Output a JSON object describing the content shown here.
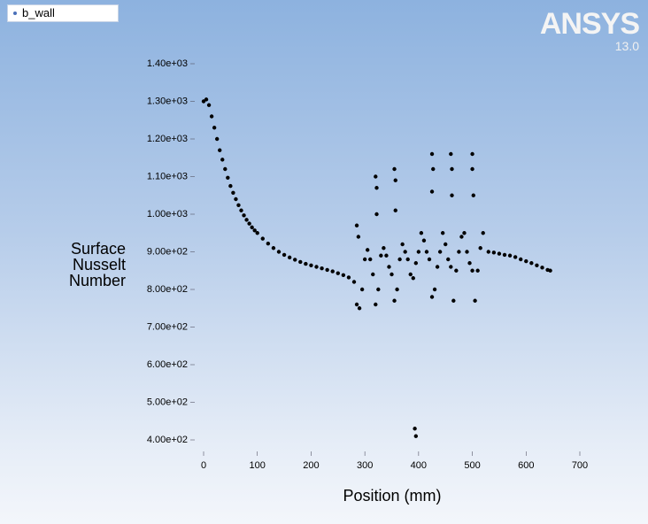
{
  "chart_data": {
    "type": "scatter",
    "logo": "ANSYS",
    "version": "13.0",
    "x_label": "Position (mm)",
    "y_label": "Surface Nusselt Number",
    "xlim": [
      0,
      700
    ],
    "ylim": [
      400,
      1400
    ],
    "xticks": [
      0,
      100,
      200,
      300,
      400,
      500,
      600,
      700
    ],
    "yticks": [
      {
        "value": 400,
        "label": "4.00e+02"
      },
      {
        "value": 500,
        "label": "5.00e+02"
      },
      {
        "value": 600,
        "label": "6.00e+02"
      },
      {
        "value": 700,
        "label": "7.00e+02"
      },
      {
        "value": 800,
        "label": "8.00e+02"
      },
      {
        "value": 900,
        "label": "9.00e+02"
      },
      {
        "value": 1000,
        "label": "1.00e+03"
      },
      {
        "value": 1100,
        "label": "1.10e+03"
      },
      {
        "value": 1200,
        "label": "1.20e+03"
      },
      {
        "value": 1300,
        "label": "1.30e+03"
      },
      {
        "value": 1400,
        "label": "1.40e+03"
      }
    ],
    "series": [
      {
        "name": "b_wall",
        "color": "#000000",
        "x": [
          0,
          5,
          10,
          15,
          20,
          25,
          30,
          35,
          40,
          45,
          50,
          55,
          60,
          65,
          70,
          75,
          80,
          85,
          90,
          95,
          100,
          110,
          120,
          130,
          140,
          150,
          160,
          170,
          180,
          190,
          200,
          210,
          220,
          230,
          240,
          250,
          260,
          270,
          280,
          285,
          290,
          295,
          300,
          305,
          310,
          315,
          320,
          325,
          330,
          335,
          340,
          345,
          350,
          355,
          360,
          365,
          370,
          375,
          380,
          385,
          390,
          395,
          400,
          405,
          410,
          415,
          420,
          425,
          430,
          435,
          440,
          445,
          450,
          455,
          460,
          465,
          470,
          475,
          480,
          485,
          490,
          495,
          500,
          505,
          510,
          515,
          520,
          530,
          540,
          550,
          560,
          570,
          580,
          590,
          600,
          610,
          620,
          630,
          640,
          645,
          285,
          288,
          320,
          322,
          322,
          355,
          357,
          357,
          393,
          395,
          425,
          427,
          425,
          460,
          462,
          462,
          500,
          500,
          502
        ],
        "values": [
          1300,
          1305,
          1290,
          1260,
          1230,
          1200,
          1170,
          1145,
          1120,
          1097,
          1075,
          1057,
          1040,
          1024,
          1010,
          997,
          985,
          975,
          965,
          957,
          950,
          935,
          922,
          910,
          900,
          892,
          885,
          879,
          873,
          868,
          864,
          860,
          856,
          852,
          848,
          843,
          838,
          832,
          820,
          760,
          750,
          800,
          880,
          905,
          880,
          840,
          760,
          800,
          890,
          910,
          890,
          860,
          840,
          770,
          800,
          880,
          920,
          900,
          880,
          840,
          830,
          870,
          900,
          950,
          930,
          900,
          880,
          780,
          800,
          860,
          900,
          950,
          920,
          880,
          860,
          770,
          850,
          900,
          940,
          950,
          900,
          870,
          850,
          770,
          850,
          910,
          950,
          900,
          898,
          895,
          892,
          890,
          886,
          880,
          875,
          870,
          864,
          858,
          852,
          850,
          970,
          940,
          1100,
          1070,
          1000,
          1120,
          1090,
          1010,
          430,
          410,
          1160,
          1120,
          1060,
          1160,
          1120,
          1050,
          1160,
          1120,
          1050
        ]
      }
    ]
  }
}
